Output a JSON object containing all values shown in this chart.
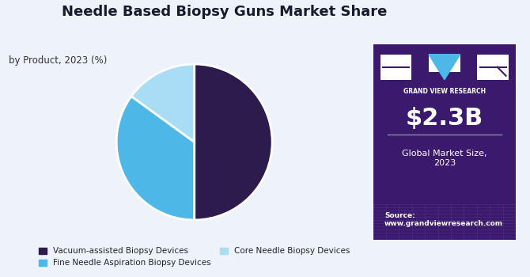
{
  "title": "Needle Based Biopsy Guns Market Share",
  "subtitle": "by Product, 2023 (%)",
  "slices": [
    50,
    35,
    15
  ],
  "labels": [
    "Vacuum-assisted Biopsy Devices",
    "Fine Needle Aspiration Biopsy Devices",
    "Core Needle Biopsy Devices"
  ],
  "colors": [
    "#2d1b4e",
    "#4db8e8",
    "#a8ddf5"
  ],
  "startangle": 90,
  "bg_left": "#eef3fb",
  "bg_right": "#3b1a6e",
  "market_size": "$2.3B",
  "market_label": "Global Market Size,\n2023",
  "source_text": "Source:\nwww.grandviewresearch.com",
  "logo_text": "GRAND VIEW RESEARCH"
}
